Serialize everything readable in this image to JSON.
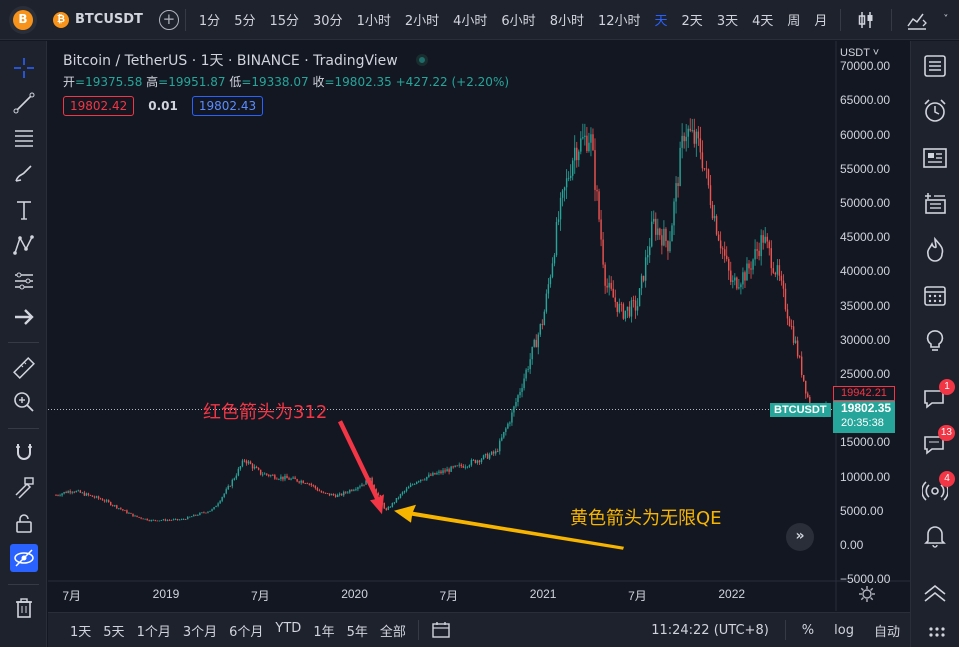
{
  "header": {
    "symbol": "BTCUSDT",
    "timeframes": [
      {
        "label": "1分",
        "active": false
      },
      {
        "label": "5分",
        "active": false
      },
      {
        "label": "15分",
        "active": false
      },
      {
        "label": "30分",
        "active": false
      },
      {
        "label": "1小时",
        "active": false
      },
      {
        "label": "2小时",
        "active": false
      },
      {
        "label": "4小时",
        "active": false
      },
      {
        "label": "6小时",
        "active": false
      },
      {
        "label": "8小时",
        "active": false
      },
      {
        "label": "12小时",
        "active": false
      },
      {
        "label": "天",
        "active": true
      },
      {
        "label": "2天",
        "active": false
      },
      {
        "label": "3天",
        "active": false
      },
      {
        "label": "4天",
        "active": false
      },
      {
        "label": "周",
        "active": false
      },
      {
        "label": "月",
        "active": false
      }
    ],
    "icons": [
      "candles-icon",
      "indicators-icon"
    ]
  },
  "legend": {
    "title": "Bitcoin / TetherUS · 1天 · BINANCE · TradingView",
    "open_label": "开",
    "open": "=19375.58",
    "high_label": "高",
    "high": "=19951.87",
    "low_label": "低",
    "low": "=19338.07",
    "close_label": "收",
    "close": "=19802.35",
    "change": "+427.22 (+2.20%)",
    "sell_price": "19802.42",
    "spread": "0.01",
    "buy_price": "19802.43"
  },
  "price_axis": {
    "currency": "USDT ˅",
    "labels": [
      "70000.00",
      "65000.00",
      "60000.00",
      "55000.00",
      "50000.00",
      "45000.00",
      "40000.00",
      "35000.00",
      "30000.00",
      "25000.00",
      "15000.00",
      "10000.00",
      "5000.00",
      "0.00",
      "−5000.00"
    ],
    "high_tag": "19942.21",
    "symbol_tag": "BTCUSDT",
    "last_price": "19802.35",
    "countdown": "20:35:38"
  },
  "time_axis": {
    "labels": [
      "7月",
      "2019",
      "7月",
      "2020",
      "7月",
      "2021",
      "7月",
      "2022"
    ]
  },
  "annotations": {
    "red_text": "红色箭头为312",
    "yellow_text": "黄色箭头为无限QE",
    "scroll_label": "»"
  },
  "bottom": {
    "ranges": [
      "1天",
      "5天",
      "1个月",
      "3个月",
      "6个月",
      "YTD",
      "1年",
      "5年",
      "全部"
    ],
    "time": "11:24:22 (UTC+8)",
    "percent": "%",
    "log": "log",
    "auto": "自动"
  },
  "left_tools": [
    "crosshair-icon",
    "trend-line-icon",
    "fib-icon",
    "brush-icon",
    "text-icon",
    "pattern-icon",
    "prediction-icon",
    "arrow-icon",
    "ruler-icon",
    "zoom-icon",
    "magnet-icon",
    "lock-drawing-icon",
    "lock-icon",
    "hide-icon",
    "trash-icon"
  ],
  "right_tools": [
    {
      "name": "watchlist-icon",
      "badge": ""
    },
    {
      "name": "alarm-icon",
      "badge": ""
    },
    {
      "name": "news-icon",
      "badge": ""
    },
    {
      "name": "data-window-icon",
      "badge": ""
    },
    {
      "name": "hotlist-icon",
      "badge": ""
    },
    {
      "name": "calendar-icon",
      "badge": ""
    },
    {
      "name": "ideas-icon",
      "badge": ""
    },
    {
      "name": "chat-icon",
      "badge": "1"
    },
    {
      "name": "messages-icon",
      "badge": "13"
    },
    {
      "name": "streams-icon",
      "badge": "4"
    },
    {
      "name": "notifications-icon",
      "badge": ""
    },
    {
      "name": "collapse-icon",
      "badge": ""
    }
  ],
  "colors": {
    "up": "#26a69a",
    "down": "#ef5350",
    "accent": "#2962ff",
    "red_arrow": "#f23645",
    "yellow_arrow": "#f7b500"
  },
  "chart_data": {
    "type": "candlestick",
    "series_name": "BTCUSDT",
    "x": [
      "2018-06",
      "2018-07",
      "2018-09",
      "2018-11",
      "2018-12",
      "2019-02",
      "2019-04",
      "2019-05",
      "2019-06",
      "2019-07",
      "2019-08",
      "2019-10",
      "2019-11",
      "2019-12",
      "2020-02",
      "2020-03",
      "2020-04",
      "2020-05",
      "2020-07",
      "2020-08",
      "2020-10",
      "2020-11",
      "2020-12",
      "2021-01",
      "2021-02",
      "2021-03",
      "2021-04",
      "2021-05",
      "2021-06",
      "2021-07",
      "2021-08",
      "2021-09",
      "2021-10",
      "2021-11",
      "2021-12",
      "2022-01",
      "2022-02",
      "2022-03",
      "2022-04",
      "2022-05",
      "2022-06",
      "2022-07"
    ],
    "values": [
      7300,
      8000,
      6600,
      4200,
      3600,
      3700,
      5200,
      8500,
      12500,
      10500,
      10000,
      9200,
      7500,
      7200,
      9500,
      5000,
      7500,
      9500,
      11000,
      11700,
      13500,
      19000,
      26000,
      33000,
      48000,
      58000,
      60000,
      38000,
      34000,
      35000,
      47000,
      44000,
      61000,
      58000,
      47000,
      38000,
      40000,
      45000,
      39000,
      30000,
      20000,
      19802
    ],
    "ylim": [
      -5000,
      70000
    ],
    "xlabel": "",
    "ylabel": "",
    "grid": false,
    "annotations": [
      {
        "date": "2020-03",
        "price": 4500,
        "text": "红色箭头为312"
      },
      {
        "date": "2020-03",
        "price": 5500,
        "text": "黄色箭头为无限QE"
      }
    ],
    "last_price": 19802.35
  }
}
